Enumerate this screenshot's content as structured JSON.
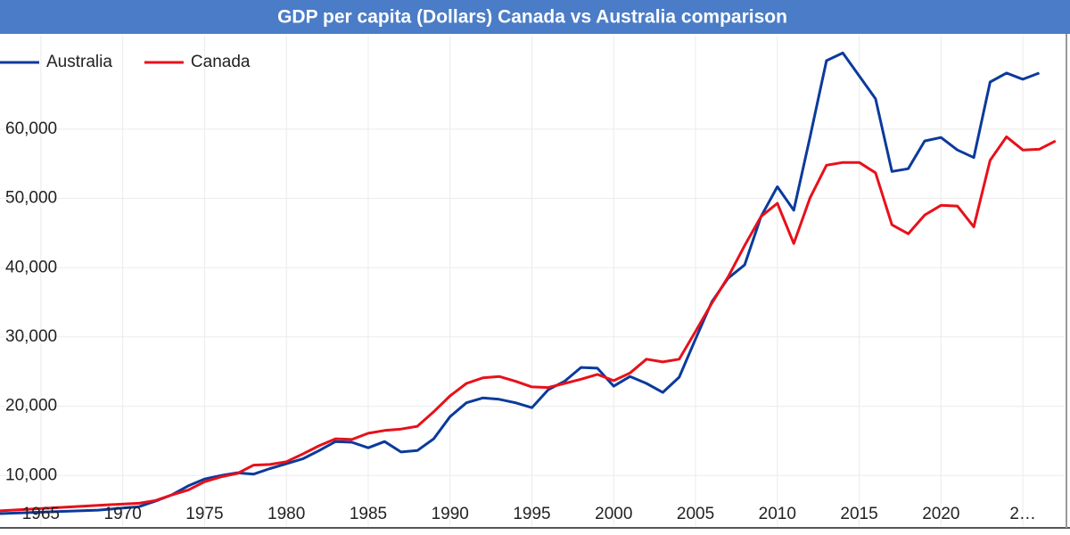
{
  "chart_data": {
    "type": "line",
    "title": "GDP per capita (Dollars) Canada vs Australia comparison",
    "x": [
      1962.5,
      1968.5,
      1971,
      1972,
      1973,
      1974,
      1975,
      1976,
      1977,
      1978,
      1979,
      1980,
      1981,
      1982,
      1983,
      1984,
      1985,
      1986,
      1987,
      1988,
      1989,
      1990,
      1991,
      1992,
      1993,
      1994,
      1995,
      1996,
      1997,
      1998,
      1999,
      2000,
      2001,
      2002,
      2003,
      2004,
      2005,
      2006,
      2007,
      2008,
      2009,
      2010,
      2011,
      2012,
      2013,
      2014,
      2015,
      2016,
      2017,
      2018,
      2019,
      2020,
      2021,
      2022,
      2023,
      2024,
      2025,
      2026,
      2027
    ],
    "series": [
      {
        "name": "Australia",
        "color": "#0b3a9c",
        "values": [
          4500,
          5000,
          5500,
          6300,
          7200,
          8500,
          9500,
          10000,
          10400,
          10200,
          11000,
          11700,
          12400,
          13600,
          14900,
          14800,
          14000,
          14900,
          13400,
          13600,
          15300,
          18500,
          20500,
          21200,
          21000,
          20500,
          19800,
          22400,
          23600,
          25600,
          25500,
          22900,
          24300,
          23300,
          22000,
          24200,
          29700,
          35100,
          38500,
          40400,
          47400,
          51700,
          48300,
          58900,
          69900,
          71000,
          67700,
          64400,
          53900,
          54300,
          58300,
          58800,
          57000,
          55900,
          66800,
          68100,
          67200,
          68100,
          null
        ]
      },
      {
        "name": "Canada",
        "color": "#e8101a",
        "values": [
          4900,
          5700,
          6000,
          6400,
          7200,
          7900,
          9100,
          9800,
          10300,
          11500,
          11600,
          12000,
          13100,
          14300,
          15300,
          15200,
          16100,
          16500,
          16700,
          17100,
          19200,
          21500,
          23300,
          24100,
          24300,
          23600,
          22800,
          22700,
          23300,
          23900,
          24600,
          23700,
          24800,
          26800,
          26400,
          26800,
          30800,
          34900,
          38700,
          43200,
          47400,
          49300,
          43500,
          50100,
          54800,
          55200,
          55200,
          53700,
          46200,
          44900,
          47600,
          49000,
          48900,
          45900,
          55500,
          58900,
          57000,
          57100,
          58300
        ]
      }
    ],
    "xlim": [
      1962.5,
      2027.5
    ],
    "xticks": [
      1965,
      1970,
      1975,
      1980,
      1985,
      1990,
      1995,
      2000,
      2005,
      2010,
      2015,
      2020,
      {
        "value": 2025,
        "label": "2…"
      }
    ],
    "ylim": [
      2700,
      73500
    ],
    "yticks": [
      {
        "value": 10000,
        "label": "10,000"
      },
      {
        "value": 20000,
        "label": "20,000"
      },
      {
        "value": 30000,
        "label": "30,000"
      },
      {
        "value": 40000,
        "label": "40,000"
      },
      {
        "value": 50000,
        "label": "50,000"
      },
      {
        "value": 60000,
        "label": "60,000"
      }
    ],
    "grid": true,
    "legend": "top-left"
  }
}
